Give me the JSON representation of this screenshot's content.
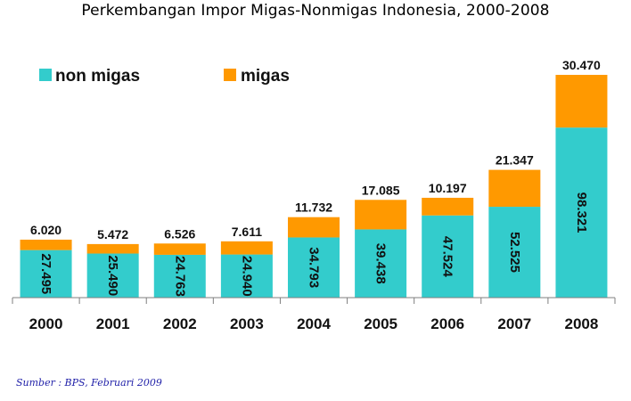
{
  "chart_data": {
    "type": "bar",
    "stacked": true,
    "title": "Perkembangan Impor Migas-Nonmigas Indonesia, 2000-2008",
    "categories": [
      "2000",
      "2001",
      "2002",
      "2003",
      "2004",
      "2005",
      "2006",
      "2007",
      "2008"
    ],
    "series": [
      {
        "name": "non migas",
        "color": "#33CCCC",
        "values": [
          27.495,
          25.49,
          24.763,
          24.94,
          34.793,
          39.438,
          47.524,
          52.525,
          98.321
        ],
        "labels": [
          "27.495",
          "25.490",
          "24.763",
          "24.940",
          "34.793",
          "39.438",
          "47.524",
          "52.525",
          "98.321"
        ]
      },
      {
        "name": "migas",
        "color": "#FF9900",
        "values": [
          6.02,
          5.472,
          6.526,
          7.611,
          11.732,
          17.085,
          10.197,
          21.347,
          30.47
        ],
        "labels": [
          "6.020",
          "5.472",
          "6.526",
          "7.611",
          "11.732",
          "17.085",
          "10.197",
          "21.347",
          "30.470"
        ]
      }
    ],
    "xlabel": "",
    "ylabel": "",
    "ylim": [
      0,
      128.791
    ],
    "grid": false,
    "legend": "top-left"
  },
  "source_note": "Sumber : BPS, Februari 2009"
}
